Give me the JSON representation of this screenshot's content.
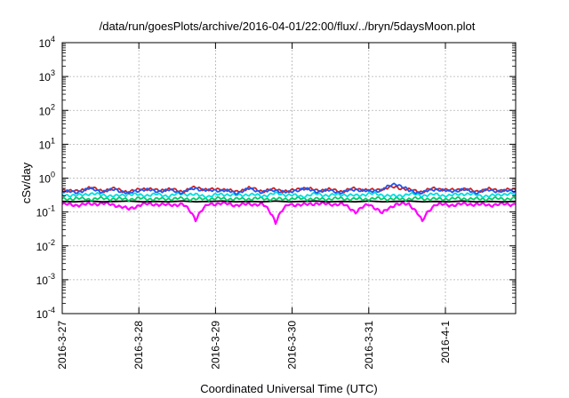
{
  "chart_data": {
    "type": "line",
    "title": "/data/run/goesPlots/archive/2016-04-01/22:00/flux/../bryn/5daysMoon.plot",
    "xlabel": "Coordinated Universal Time (UTC)",
    "ylabel": "cSv/day",
    "y_scale": "log",
    "ylim_exponents": [
      -4,
      4
    ],
    "yticks": [
      {
        "base": "10",
        "exp": "-4"
      },
      {
        "base": "10",
        "exp": "-3"
      },
      {
        "base": "10",
        "exp": "-2"
      },
      {
        "base": "10",
        "exp": "-1"
      },
      {
        "base": "10",
        "exp": "0"
      },
      {
        "base": "10",
        "exp": "1"
      },
      {
        "base": "10",
        "exp": "2"
      },
      {
        "base": "10",
        "exp": "3"
      },
      {
        "base": "10",
        "exp": "4"
      }
    ],
    "xlim": [
      "2016-03-27T00:00",
      "2016-04-01T22:00"
    ],
    "xticks": [
      "2016-3-27",
      "2016-3-28",
      "2016-3-29",
      "2016-3-30",
      "2016-3-31",
      "2016-4-1"
    ],
    "grid": true,
    "series": [
      {
        "color": "#ff00ff",
        "base": 0.17,
        "values": [
          0.17,
          0.16,
          0.17,
          0.18,
          0.16,
          0.12,
          0.17,
          0.17,
          0.16,
          0.17,
          0.06,
          0.17,
          0.18,
          0.16,
          0.17,
          0.17,
          0.05,
          0.17,
          0.16,
          0.18,
          0.17,
          0.17,
          0.1,
          0.17,
          0.09,
          0.17,
          0.17,
          0.05,
          0.17,
          0.16,
          0.17,
          0.17,
          0.16,
          0.17,
          0.17
        ]
      },
      {
        "color": "#000000",
        "base": 0.205,
        "values": [
          0.205,
          0.2,
          0.21,
          0.2,
          0.205,
          0.21,
          0.2,
          0.205,
          0.2,
          0.21,
          0.2,
          0.205,
          0.21,
          0.2,
          0.205,
          0.2,
          0.21,
          0.2,
          0.205,
          0.21,
          0.2,
          0.205,
          0.2,
          0.21,
          0.2,
          0.205,
          0.21,
          0.2,
          0.205,
          0.2,
          0.21,
          0.2,
          0.205,
          0.2,
          0.205
        ]
      },
      {
        "color": "#00cc66",
        "base": 0.245,
        "values": [
          0.24,
          0.25,
          0.24,
          0.25,
          0.245,
          0.24,
          0.25,
          0.24,
          0.245,
          0.25,
          0.24,
          0.245,
          0.25,
          0.24,
          0.245,
          0.25,
          0.24,
          0.245,
          0.25,
          0.24,
          0.245,
          0.25,
          0.24,
          0.245,
          0.25,
          0.24,
          0.245,
          0.25,
          0.24,
          0.245,
          0.25,
          0.24,
          0.245,
          0.25,
          0.245
        ]
      },
      {
        "color": "#00dddd",
        "base": 0.33,
        "values": [
          0.33,
          0.3,
          0.35,
          0.32,
          0.29,
          0.34,
          0.31,
          0.33,
          0.3,
          0.35,
          0.32,
          0.29,
          0.34,
          0.31,
          0.33,
          0.3,
          0.35,
          0.32,
          0.29,
          0.34,
          0.31,
          0.33,
          0.3,
          0.35,
          0.32,
          0.29,
          0.34,
          0.31,
          0.33,
          0.3,
          0.35,
          0.32,
          0.29,
          0.34,
          0.33
        ]
      },
      {
        "color": "#cc2222",
        "base": 0.46,
        "values": [
          0.46,
          0.4,
          0.52,
          0.43,
          0.49,
          0.38,
          0.5,
          0.44,
          0.47,
          0.41,
          0.53,
          0.45,
          0.48,
          0.39,
          0.51,
          0.42,
          0.47,
          0.4,
          0.52,
          0.44,
          0.46,
          0.41,
          0.5,
          0.43,
          0.48,
          0.55,
          0.45,
          0.4,
          0.51,
          0.43,
          0.49,
          0.41,
          0.47,
          0.44,
          0.46
        ]
      },
      {
        "color": "#2255ee",
        "base": 0.43,
        "values": [
          0.43,
          0.37,
          0.49,
          0.4,
          0.46,
          0.35,
          0.47,
          0.41,
          0.44,
          0.38,
          0.5,
          0.42,
          0.45,
          0.36,
          0.48,
          0.39,
          0.44,
          0.37,
          0.49,
          0.41,
          0.43,
          0.38,
          0.47,
          0.4,
          0.45,
          0.7,
          0.42,
          0.37,
          0.48,
          0.4,
          0.46,
          0.38,
          0.44,
          0.41,
          0.43
        ]
      }
    ]
  }
}
